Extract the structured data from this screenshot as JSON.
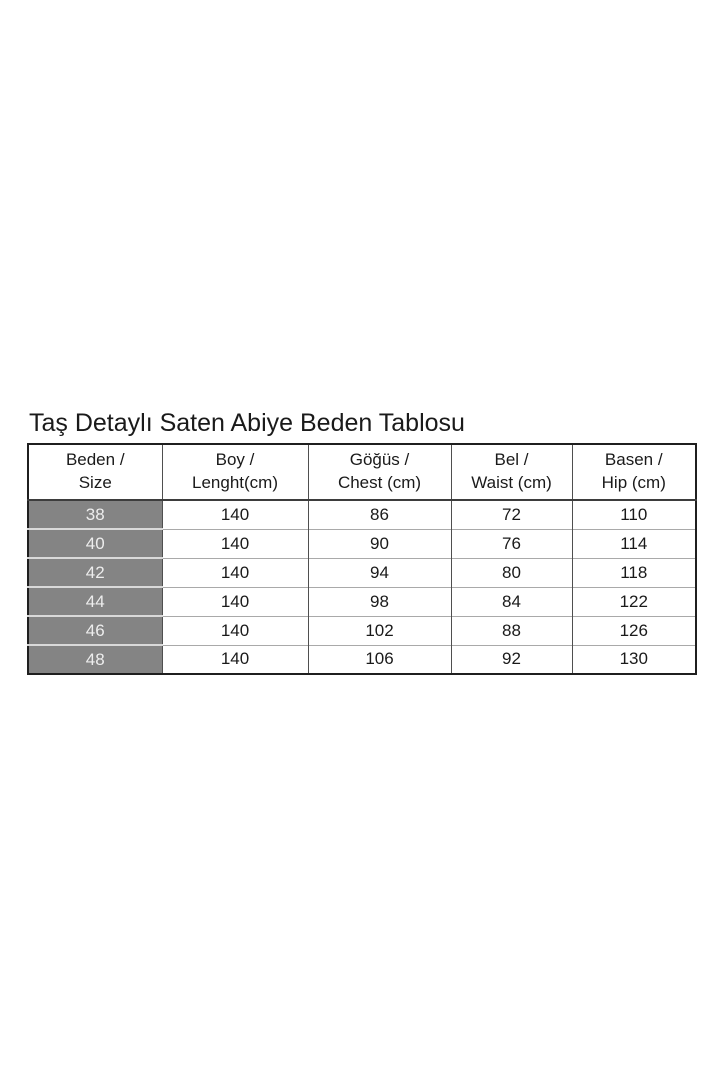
{
  "chart_data": {
    "type": "table",
    "title": "Taş Detaylı Saten Abiye Beden Tablosu",
    "columns": [
      "Beden / Size",
      "Boy / Lenght(cm)",
      "Göğüs / Chest (cm)",
      "Bel / Waist (cm)",
      "Basen / Hip (cm)"
    ],
    "rows": [
      [
        38,
        140,
        86,
        72,
        110
      ],
      [
        40,
        140,
        90,
        76,
        114
      ],
      [
        42,
        140,
        94,
        80,
        118
      ],
      [
        44,
        140,
        98,
        84,
        122
      ],
      [
        46,
        140,
        102,
        88,
        126
      ],
      [
        48,
        140,
        106,
        92,
        130
      ]
    ]
  },
  "size_chart": {
    "title": "Taş Detaylı Saten Abiye Beden Tablosu",
    "columns": [
      {
        "label": "Beden /\nSize"
      },
      {
        "label": "Boy /\nLenght(cm)"
      },
      {
        "label": "Göğüs /\nChest (cm)"
      },
      {
        "label": "Bel /\nWaist (cm)"
      },
      {
        "label": "Basen /\nHip (cm)"
      }
    ],
    "rows": [
      {
        "size": "38",
        "length": "140",
        "chest": "86",
        "waist": "72",
        "hip": "110"
      },
      {
        "size": "40",
        "length": "140",
        "chest": "90",
        "waist": "76",
        "hip": "114"
      },
      {
        "size": "42",
        "length": "140",
        "chest": "94",
        "waist": "80",
        "hip": "118"
      },
      {
        "size": "44",
        "length": "140",
        "chest": "98",
        "waist": "84",
        "hip": "122"
      },
      {
        "size": "46",
        "length": "140",
        "chest": "102",
        "waist": "88",
        "hip": "126"
      },
      {
        "size": "48",
        "length": "140",
        "chest": "106",
        "waist": "92",
        "hip": "130"
      }
    ],
    "colors": {
      "background": "#ffffff",
      "text": "#1a1a1a",
      "outer_border": "#1f1f1f",
      "column_divider": "#4f4f4f",
      "row_divider": "#a9a9a9",
      "size_column_bg": "#848484",
      "size_column_text": "#ededed"
    }
  }
}
